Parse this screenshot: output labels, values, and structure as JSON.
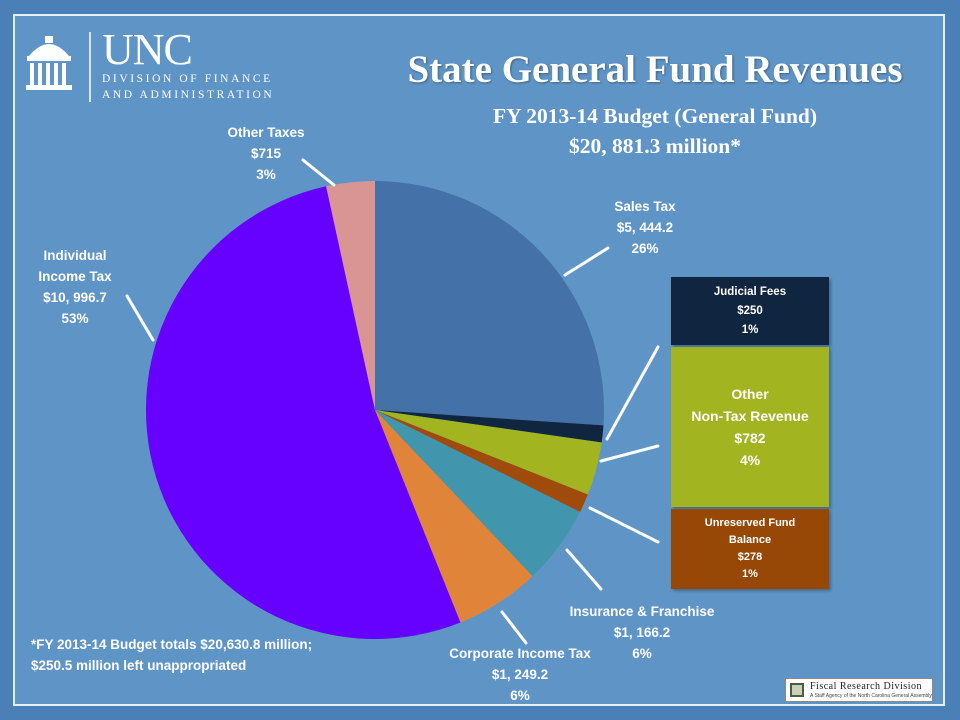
{
  "header": {
    "uni_abbrev": "UNC",
    "uni_line1": "DIVISION OF FINANCE",
    "uni_line2": "AND ADMINISTRATION"
  },
  "title": "State General Fund Revenues",
  "subtitle_line1": "FY 2013-14 Budget (General Fund)",
  "subtitle_line2": "$20, 881.3 million*",
  "labels": {
    "sales_tax": {
      "name": "Sales Tax",
      "amount": "$5, 444.2",
      "pct": "26%"
    },
    "judicial_fees": {
      "name": "Judicial Fees",
      "amount": "$250",
      "pct": "1%"
    },
    "other_nontax": {
      "name_line1": "Other",
      "name_line2": "Non-Tax Revenue",
      "amount": "$782",
      "pct": "4%"
    },
    "unreserved": {
      "name_line1": "Unreserved Fund",
      "name_line2": "Balance",
      "amount": "$278",
      "pct": "1%"
    },
    "insurance": {
      "name": "Insurance & Franchise",
      "amount": "$1, 166.2",
      "pct": "6%"
    },
    "corporate": {
      "name": "Corporate Income Tax",
      "amount": "$1, 249.2",
      "pct": "6%"
    },
    "individual": {
      "name_line1": "Individual",
      "name_line2": "Income Tax",
      "amount": "$10, 996.7",
      "pct": "53%"
    },
    "other_taxes": {
      "name": "Other Taxes",
      "amount": "$715",
      "pct": "3%"
    }
  },
  "footnote": "*FY 2013-14 Budget totals $20,630.8 million; $250.5 million left unappropriated",
  "badge": {
    "name": "Fiscal Research Division",
    "tagline": "A Staff Agency of the North Carolina General Assembly"
  },
  "chart_data": {
    "type": "pie",
    "title": "State General Fund Revenues",
    "subtitle": "FY 2013-14 Budget (General Fund) $20, 881.3 million*",
    "categories": [
      "Sales Tax",
      "Judicial Fees",
      "Other Non-Tax Revenue",
      "Unreserved Fund Balance",
      "Insurance & Franchise",
      "Corporate Income Tax",
      "Individual Income Tax",
      "Other Taxes"
    ],
    "values": [
      5444.2,
      250,
      782,
      278,
      1166.2,
      1249.2,
      10996.7,
      715
    ],
    "percent_labels": [
      "26%",
      "1%",
      "4%",
      "1%",
      "6%",
      "6%",
      "53%",
      "3%"
    ],
    "colors": [
      "#4472a8",
      "#10253f",
      "#a2b521",
      "#a04a0c",
      "#4196ad",
      "#e0843a",
      "#6600ff",
      "#d99594"
    ],
    "start_angle": "12 o'clock",
    "direction": "clockwise"
  }
}
